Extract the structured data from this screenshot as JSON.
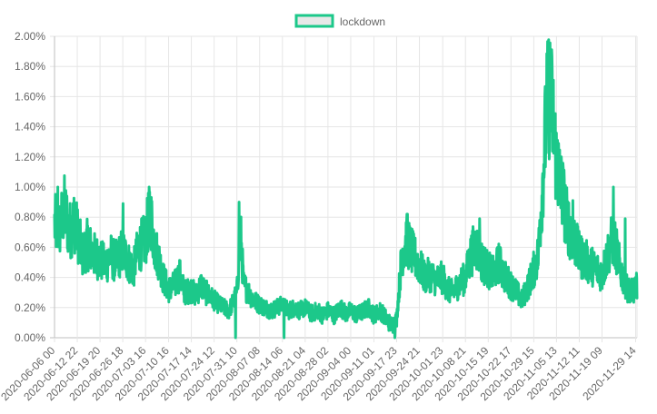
{
  "chart_data": {
    "type": "line",
    "title": "",
    "xlabel": "",
    "ylabel": "",
    "grid": true,
    "legend_placement": "top-center",
    "series": [
      {
        "name": "lockdown",
        "color": "#1cc88a",
        "legend_fill": "#e8e8e8",
        "anchors": [
          [
            "2020-06-06 00",
            0.75
          ],
          [
            "2020-06-07 12",
            0.72
          ],
          [
            "2020-06-09 00",
            0.85
          ],
          [
            "2020-06-10 12",
            0.7
          ],
          [
            "2020-06-12 00",
            0.78
          ],
          [
            "2020-06-12 22",
            0.7
          ],
          [
            "2020-06-14 12",
            0.55
          ],
          [
            "2020-06-16 00",
            0.62
          ],
          [
            "2020-06-18 00",
            0.55
          ],
          [
            "2020-06-19 20",
            0.52
          ],
          [
            "2020-06-21 12",
            0.48
          ],
          [
            "2020-06-23 00",
            0.55
          ],
          [
            "2020-06-24 12",
            0.5
          ],
          [
            "2020-06-26 18",
            0.58
          ],
          [
            "2020-06-28 12",
            0.5
          ],
          [
            "2020-06-30 00",
            0.45
          ],
          [
            "2020-07-01 12",
            0.6
          ],
          [
            "2020-07-03 16",
            0.65
          ],
          [
            "2020-07-05 00",
            0.85
          ],
          [
            "2020-07-06 12",
            0.6
          ],
          [
            "2020-07-08 00",
            0.5
          ],
          [
            "2020-07-09 00",
            0.4
          ],
          [
            "2020-07-10 16",
            0.32
          ],
          [
            "2020-07-12 12",
            0.35
          ],
          [
            "2020-07-14 00",
            0.42
          ],
          [
            "2020-07-15 12",
            0.3
          ],
          [
            "2020-07-17 14",
            0.32
          ],
          [
            "2020-07-19 00",
            0.28
          ],
          [
            "2020-07-20 12",
            0.35
          ],
          [
            "2020-07-22 00",
            0.3
          ],
          [
            "2020-07-24 12",
            0.25
          ],
          [
            "2020-07-26 00",
            0.22
          ],
          [
            "2020-07-27 12",
            0.2
          ],
          [
            "2020-07-29 00",
            0.18
          ],
          [
            "2020-07-30 12",
            0.25
          ],
          [
            "2020-07-31 10",
            0.3
          ],
          [
            "2020-08-01 12",
            0.7
          ],
          [
            "2020-08-02 12",
            0.35
          ],
          [
            "2020-08-04 00",
            0.3
          ],
          [
            "2020-08-05 12",
            0.25
          ],
          [
            "2020-08-07 08",
            0.22
          ],
          [
            "2020-08-09 00",
            0.2
          ],
          [
            "2020-08-11 00",
            0.18
          ],
          [
            "2020-08-12 12",
            0.2
          ],
          [
            "2020-08-14 06",
            0.22
          ],
          [
            "2020-08-16 00",
            0.18
          ],
          [
            "2020-08-18 00",
            0.2
          ],
          [
            "2020-08-19 12",
            0.18
          ],
          [
            "2020-08-21 04",
            0.2
          ],
          [
            "2020-08-23 00",
            0.16
          ],
          [
            "2020-08-25 00",
            0.18
          ],
          [
            "2020-08-26 12",
            0.15
          ],
          [
            "2020-08-28 02",
            0.18
          ],
          [
            "2020-08-30 00",
            0.15
          ],
          [
            "2020-09-01 00",
            0.2
          ],
          [
            "2020-09-02 12",
            0.16
          ],
          [
            "2020-09-04 00",
            0.18
          ],
          [
            "2020-09-06 00",
            0.15
          ],
          [
            "2020-09-08 00",
            0.18
          ],
          [
            "2020-09-09 12",
            0.2
          ],
          [
            "2020-09-11 01",
            0.15
          ],
          [
            "2020-09-13 00",
            0.18
          ],
          [
            "2020-09-15 00",
            0.12
          ],
          [
            "2020-09-16 12",
            0.08
          ],
          [
            "2020-09-17 23",
            0.12
          ],
          [
            "2020-09-19 12",
            0.55
          ],
          [
            "2020-09-21 00",
            0.65
          ],
          [
            "2020-09-23 00",
            0.55
          ],
          [
            "2020-09-24 21",
            0.48
          ],
          [
            "2020-09-26 12",
            0.4
          ],
          [
            "2020-09-28 00",
            0.42
          ],
          [
            "2020-09-30 00",
            0.38
          ],
          [
            "2020-10-01 23",
            0.4
          ],
          [
            "2020-10-03 12",
            0.32
          ],
          [
            "2020-10-05 00",
            0.3
          ],
          [
            "2020-10-07 00",
            0.36
          ],
          [
            "2020-10-08 21",
            0.4
          ],
          [
            "2020-10-10 12",
            0.55
          ],
          [
            "2020-10-12 00",
            0.62
          ],
          [
            "2020-10-14 00",
            0.5
          ],
          [
            "2020-10-15 19",
            0.45
          ],
          [
            "2020-10-17 12",
            0.42
          ],
          [
            "2020-10-19 00",
            0.5
          ],
          [
            "2020-10-21 00",
            0.4
          ],
          [
            "2020-10-22 17",
            0.35
          ],
          [
            "2020-10-24 12",
            0.3
          ],
          [
            "2020-10-26 00",
            0.25
          ],
          [
            "2020-10-28 00",
            0.35
          ],
          [
            "2020-10-29 15",
            0.45
          ],
          [
            "2020-10-31 00",
            0.55
          ],
          [
            "2020-11-01 12",
            1.1
          ],
          [
            "2020-11-02 12",
            1.5
          ],
          [
            "2020-11-03 12",
            1.65
          ],
          [
            "2020-11-04 12",
            1.45
          ],
          [
            "2020-11-05 13",
            1.15
          ],
          [
            "2020-11-06 12",
            1.05
          ],
          [
            "2020-11-07 12",
            0.95
          ],
          [
            "2020-11-08 12",
            0.8
          ],
          [
            "2020-11-09 12",
            0.72
          ],
          [
            "2020-11-11 00",
            0.65
          ],
          [
            "2020-11-12 11",
            0.55
          ],
          [
            "2020-11-14 00",
            0.52
          ],
          [
            "2020-11-16 00",
            0.48
          ],
          [
            "2020-11-18 00",
            0.45
          ],
          [
            "2020-11-19 09",
            0.42
          ],
          [
            "2020-11-21 00",
            0.55
          ],
          [
            "2020-11-22 12",
            0.65
          ],
          [
            "2020-11-23 12",
            0.6
          ],
          [
            "2020-11-25 00",
            0.45
          ],
          [
            "2020-11-26 12",
            0.35
          ],
          [
            "2020-11-28 00",
            0.3
          ],
          [
            "2020-11-29 14",
            0.32
          ],
          [
            "2020-11-30 00",
            0.35
          ]
        ],
        "spikes": [
          [
            "2020-06-07 00",
            1.0
          ],
          [
            "2020-06-09 18",
            0.94
          ],
          [
            "2020-06-26 20",
            0.89
          ],
          [
            "2020-07-04 18",
            1.0
          ],
          [
            "2020-08-01 02",
            0.9
          ],
          [
            "2020-09-21 06",
            0.82
          ],
          [
            "2020-10-13 04",
            0.79
          ],
          [
            "2020-10-31 10",
            0.78
          ],
          [
            "2020-11-02 18",
            1.76
          ],
          [
            "2020-11-03 20",
            1.87
          ],
          [
            "2020-11-05 20",
            1.31
          ],
          [
            "2020-11-07 00",
            1.2
          ],
          [
            "2020-11-10 12",
            0.91
          ],
          [
            "2020-11-22 20",
            1.0
          ],
          [
            "2020-11-26 10",
            0.79
          ],
          [
            "2020-09-17 10",
            0.0
          ],
          [
            "2020-08-14 18",
            0.0
          ],
          [
            "2020-07-31 00",
            0.0
          ]
        ]
      }
    ],
    "x_ticks": [
      "2020-06-06 00",
      "2020-06-12 22",
      "2020-06-19 20",
      "2020-06-26 18",
      "2020-07-03 16",
      "2020-07-10 16",
      "2020-07-17 14",
      "2020-07-24 12",
      "2020-07-31 10",
      "2020-08-07 08",
      "2020-08-14 06",
      "2020-08-21 04",
      "2020-08-28 02",
      "2020-09-04 00",
      "2020-09-11 01",
      "2020-09-17 23",
      "2020-09-24 21",
      "2020-10-01 23",
      "2020-10-08 21",
      "2020-10-15 19",
      "2020-10-22 17",
      "2020-10-29 15",
      "2020-11-05 13",
      "2020-11-12 11",
      "2020-11-19 09",
      "2020-11-29 14"
    ],
    "x_range": [
      "2020-06-06 00",
      "2020-11-30 00"
    ],
    "y_ticks": [
      "0.00%",
      "0.20%",
      "0.40%",
      "0.60%",
      "0.80%",
      "1.00%",
      "1.20%",
      "1.40%",
      "1.60%",
      "1.80%",
      "2.00%"
    ],
    "ylim": [
      0,
      2.0
    ]
  }
}
